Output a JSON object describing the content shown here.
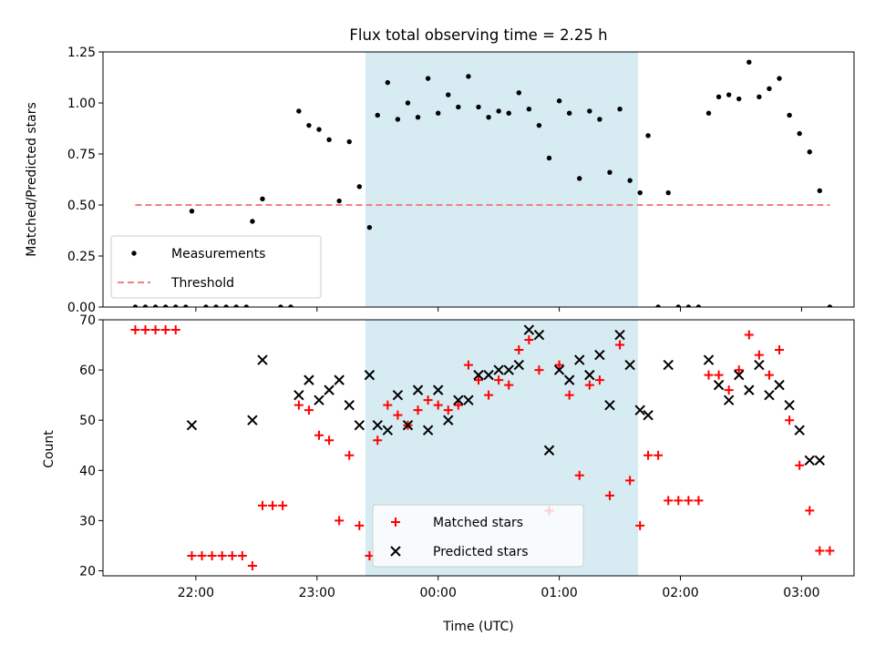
{
  "chart_data": [
    {
      "type": "scatter",
      "title": "Flux total observing time = 2.25 h",
      "xlabel": "",
      "ylabel": "Matched/Predicted stars",
      "xlim": [
        "21:14",
        "03:26"
      ],
      "ylim": [
        0,
        1.25
      ],
      "yticks": [
        "0.00",
        "0.25",
        "0.50",
        "0.75",
        "1.00",
        "1.25"
      ],
      "shaded_span": [
        "23:24",
        "01:39"
      ],
      "legend_position": "lower-left",
      "series": [
        {
          "name": "Measurements",
          "marker": "dot",
          "color": "#000000",
          "points": [
            [
              "21:30",
              0
            ],
            [
              "21:35",
              0
            ],
            [
              "21:40",
              0
            ],
            [
              "21:45",
              0
            ],
            [
              "21:50",
              0
            ],
            [
              "21:55",
              0
            ],
            [
              "21:58",
              0.47
            ],
            [
              "22:05",
              0
            ],
            [
              "22:10",
              0
            ],
            [
              "22:15",
              0
            ],
            [
              "22:20",
              0
            ],
            [
              "22:25",
              0
            ],
            [
              "22:28",
              0.42
            ],
            [
              "22:33",
              0.53
            ],
            [
              "22:42",
              0
            ],
            [
              "22:47",
              0
            ],
            [
              "22:51",
              0.96
            ],
            [
              "22:56",
              0.89
            ],
            [
              "23:01",
              0.87
            ],
            [
              "23:06",
              0.82
            ],
            [
              "23:11",
              0.52
            ],
            [
              "23:16",
              0.81
            ],
            [
              "23:21",
              0.59
            ],
            [
              "23:26",
              0.39
            ],
            [
              "23:30",
              0.94
            ],
            [
              "23:35",
              1.1
            ],
            [
              "23:40",
              0.92
            ],
            [
              "23:45",
              1.0
            ],
            [
              "23:50",
              0.93
            ],
            [
              "23:55",
              1.12
            ],
            [
              "00:00",
              0.95
            ],
            [
              "00:05",
              1.04
            ],
            [
              "00:10",
              0.98
            ],
            [
              "00:15",
              1.13
            ],
            [
              "00:20",
              0.98
            ],
            [
              "00:25",
              0.93
            ],
            [
              "00:30",
              0.96
            ],
            [
              "00:35",
              0.95
            ],
            [
              "00:40",
              1.05
            ],
            [
              "00:45",
              0.97
            ],
            [
              "00:50",
              0.89
            ],
            [
              "00:55",
              0.73
            ],
            [
              "01:00",
              1.01
            ],
            [
              "01:05",
              0.95
            ],
            [
              "01:10",
              0.63
            ],
            [
              "01:15",
              0.96
            ],
            [
              "01:20",
              0.92
            ],
            [
              "01:25",
              0.66
            ],
            [
              "01:30",
              0.97
            ],
            [
              "01:35",
              0.62
            ],
            [
              "01:40",
              0.56
            ],
            [
              "01:44",
              0.84
            ],
            [
              "01:49",
              0
            ],
            [
              "01:54",
              0.56
            ],
            [
              "01:59",
              0
            ],
            [
              "02:04",
              0
            ],
            [
              "02:09",
              0
            ],
            [
              "02:14",
              0.95
            ],
            [
              "02:19",
              1.03
            ],
            [
              "02:24",
              1.04
            ],
            [
              "02:29",
              1.02
            ],
            [
              "02:34",
              1.2
            ],
            [
              "02:39",
              1.03
            ],
            [
              "02:44",
              1.07
            ],
            [
              "02:49",
              1.12
            ],
            [
              "02:54",
              0.94
            ],
            [
              "02:59",
              0.85
            ],
            [
              "03:04",
              0.76
            ],
            [
              "03:09",
              0.57
            ],
            [
              "03:14",
              0
            ]
          ]
        },
        {
          "name": "Threshold",
          "marker": "dashed-line",
          "color": "#f08080",
          "points": [
            [
              "21:30",
              0.5
            ],
            [
              "03:14",
              0.5
            ]
          ]
        }
      ]
    },
    {
      "type": "scatter",
      "title": "",
      "xlabel": "Time (UTC)",
      "ylabel": "Count",
      "xlim": [
        "21:14",
        "03:26"
      ],
      "ylim": [
        19,
        70
      ],
      "yticks": [
        "20",
        "30",
        "40",
        "50",
        "60",
        "70"
      ],
      "xticks": [
        "22:00",
        "23:00",
        "00:00",
        "01:00",
        "02:00",
        "03:00"
      ],
      "shaded_span": [
        "23:24",
        "01:39"
      ],
      "legend_position": "lower-center",
      "series": [
        {
          "name": "Matched stars",
          "marker": "plus",
          "color": "#ff0000",
          "points": [
            [
              "21:30",
              68
            ],
            [
              "21:35",
              68
            ],
            [
              "21:40",
              68
            ],
            [
              "21:45",
              68
            ],
            [
              "21:50",
              68
            ],
            [
              "21:58",
              23
            ],
            [
              "22:03",
              23
            ],
            [
              "22:08",
              23
            ],
            [
              "22:13",
              23
            ],
            [
              "22:18",
              23
            ],
            [
              "22:23",
              23
            ],
            [
              "22:28",
              21
            ],
            [
              "22:33",
              33
            ],
            [
              "22:38",
              33
            ],
            [
              "22:43",
              33
            ],
            [
              "22:51",
              53
            ],
            [
              "22:56",
              52
            ],
            [
              "23:01",
              47
            ],
            [
              "23:06",
              46
            ],
            [
              "23:11",
              30
            ],
            [
              "23:16",
              43
            ],
            [
              "23:21",
              29
            ],
            [
              "23:26",
              23
            ],
            [
              "23:30",
              46
            ],
            [
              "23:35",
              53
            ],
            [
              "23:40",
              51
            ],
            [
              "23:45",
              49
            ],
            [
              "23:50",
              52
            ],
            [
              "23:55",
              54
            ],
            [
              "00:00",
              53
            ],
            [
              "00:05",
              52
            ],
            [
              "00:10",
              53
            ],
            [
              "00:15",
              61
            ],
            [
              "00:20",
              58
            ],
            [
              "00:25",
              55
            ],
            [
              "00:30",
              58
            ],
            [
              "00:35",
              57
            ],
            [
              "00:40",
              64
            ],
            [
              "00:45",
              66
            ],
            [
              "00:50",
              60
            ],
            [
              "00:55",
              32
            ],
            [
              "01:00",
              61
            ],
            [
              "01:05",
              55
            ],
            [
              "01:10",
              39
            ],
            [
              "01:15",
              57
            ],
            [
              "01:20",
              58
            ],
            [
              "01:25",
              35
            ],
            [
              "01:30",
              65
            ],
            [
              "01:35",
              38
            ],
            [
              "01:40",
              29
            ],
            [
              "01:44",
              43
            ],
            [
              "01:49",
              43
            ],
            [
              "01:54",
              34
            ],
            [
              "01:59",
              34
            ],
            [
              "02:04",
              34
            ],
            [
              "02:09",
              34
            ],
            [
              "02:14",
              59
            ],
            [
              "02:19",
              59
            ],
            [
              "02:24",
              56
            ],
            [
              "02:29",
              60
            ],
            [
              "02:34",
              67
            ],
            [
              "02:39",
              63
            ],
            [
              "02:44",
              59
            ],
            [
              "02:49",
              64
            ],
            [
              "02:54",
              50
            ],
            [
              "02:59",
              41
            ],
            [
              "03:04",
              32
            ],
            [
              "03:09",
              24
            ],
            [
              "03:14",
              24
            ]
          ]
        },
        {
          "name": "Predicted stars",
          "marker": "x",
          "color": "#000000",
          "points": [
            [
              "21:58",
              49
            ],
            [
              "22:28",
              50
            ],
            [
              "22:33",
              62
            ],
            [
              "22:51",
              55
            ],
            [
              "22:56",
              58
            ],
            [
              "23:01",
              54
            ],
            [
              "23:06",
              56
            ],
            [
              "23:11",
              58
            ],
            [
              "23:16",
              53
            ],
            [
              "23:21",
              49
            ],
            [
              "23:26",
              59
            ],
            [
              "23:30",
              49
            ],
            [
              "23:35",
              48
            ],
            [
              "23:40",
              55
            ],
            [
              "23:45",
              49
            ],
            [
              "23:50",
              56
            ],
            [
              "23:55",
              48
            ],
            [
              "00:00",
              56
            ],
            [
              "00:05",
              50
            ],
            [
              "00:10",
              54
            ],
            [
              "00:15",
              54
            ],
            [
              "00:20",
              59
            ],
            [
              "00:25",
              59
            ],
            [
              "00:30",
              60
            ],
            [
              "00:35",
              60
            ],
            [
              "00:40",
              61
            ],
            [
              "00:45",
              68
            ],
            [
              "00:50",
              67
            ],
            [
              "00:55",
              44
            ],
            [
              "01:00",
              60
            ],
            [
              "01:05",
              58
            ],
            [
              "01:10",
              62
            ],
            [
              "01:15",
              59
            ],
            [
              "01:20",
              63
            ],
            [
              "01:25",
              53
            ],
            [
              "01:30",
              67
            ],
            [
              "01:35",
              61
            ],
            [
              "01:40",
              52
            ],
            [
              "01:44",
              51
            ],
            [
              "01:54",
              61
            ],
            [
              "02:14",
              62
            ],
            [
              "02:19",
              57
            ],
            [
              "02:24",
              54
            ],
            [
              "02:29",
              59
            ],
            [
              "02:34",
              56
            ],
            [
              "02:39",
              61
            ],
            [
              "02:44",
              55
            ],
            [
              "02:49",
              57
            ],
            [
              "02:54",
              53
            ],
            [
              "02:59",
              48
            ],
            [
              "03:04",
              42
            ],
            [
              "03:09",
              42
            ]
          ]
        }
      ]
    }
  ]
}
